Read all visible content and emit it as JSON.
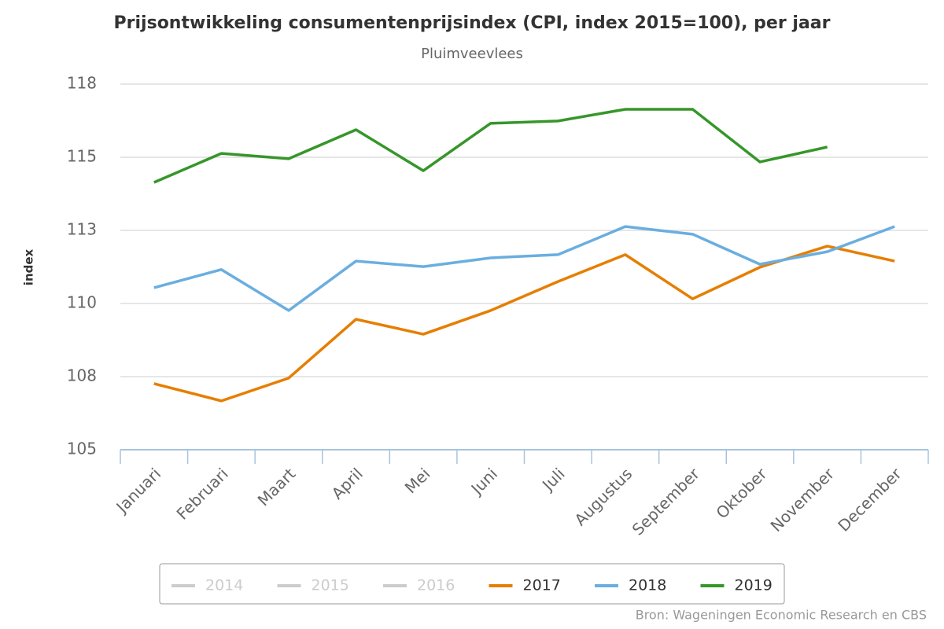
{
  "chart_data": {
    "type": "line",
    "title": "Prijsontwikkeling consumentenprijsindex (CPI, index 2015=100), per jaar",
    "subtitle": "Pluimveevlees",
    "y_label": "index",
    "source": "Bron: Wageningen Economic Research en CBS",
    "categories": [
      "Januari",
      "Februari",
      "Maart",
      "April",
      "Mei",
      "Juni",
      "Juli",
      "Augustus",
      "September",
      "Oktober",
      "November",
      "December"
    ],
    "series": [
      {
        "name": "2014",
        "color": "#cccccc",
        "hidden": true,
        "values": [
          null,
          null,
          null,
          null,
          null,
          null,
          null,
          null,
          null,
          null,
          null,
          null
        ]
      },
      {
        "name": "2015",
        "color": "#cccccc",
        "hidden": true,
        "values": [
          null,
          null,
          null,
          null,
          null,
          null,
          null,
          null,
          null,
          null,
          null,
          null
        ]
      },
      {
        "name": "2016",
        "color": "#cccccc",
        "hidden": true,
        "values": [
          null,
          null,
          null,
          null,
          null,
          null,
          null,
          null,
          null,
          null,
          null,
          null
        ]
      },
      {
        "name": "2017",
        "color": "#e67e00",
        "values": [
          107.26,
          106.67,
          107.45,
          109.46,
          108.95,
          109.76,
          110.75,
          111.67,
          110.16,
          111.24,
          111.96,
          111.45
        ]
      },
      {
        "name": "2018",
        "color": "#6aaee0",
        "values": [
          110.54,
          111.16,
          109.76,
          111.45,
          111.26,
          111.56,
          111.67,
          112.63,
          112.37,
          111.34,
          111.77,
          112.63
        ]
      },
      {
        "name": "2019",
        "color": "#36962a",
        "values": [
          114.14,
          115.13,
          114.95,
          115.94,
          114.54,
          116.16,
          116.24,
          116.64,
          116.64,
          114.84,
          115.35,
          null
        ]
      }
    ],
    "ylim": [
      105,
      117.5
    ],
    "yticks": [
      105,
      {
        "value": 107.5,
        "label": "108"
      },
      110,
      {
        "value": 112.5,
        "label": "113"
      },
      115,
      {
        "value": 117.5,
        "label": "118"
      }
    ],
    "grid": true,
    "legend": "bottom"
  }
}
